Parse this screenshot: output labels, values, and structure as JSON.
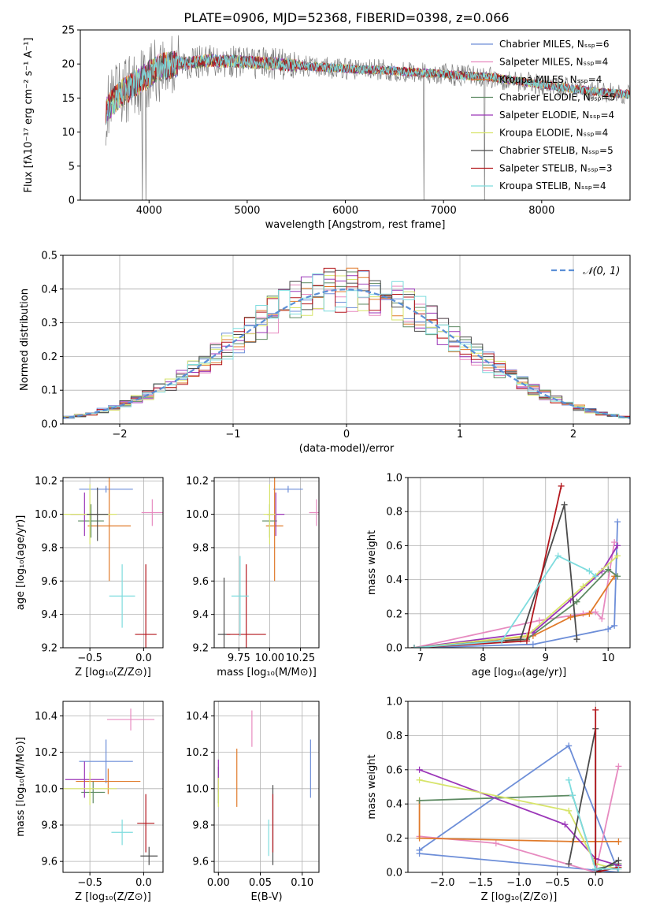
{
  "title": "PLATE=0906, MJD=52368, FIBERID=0398, z=0.066",
  "model_colors": [
    "#6d8ed8",
    "#e78bc0",
    "#e07a2a",
    "#5d8a62",
    "#9b36b8",
    "#d7e46a",
    "#4b4b4b",
    "#b3171d",
    "#7edcde"
  ],
  "chart_data": [
    {
      "id": "spectrum",
      "type": "line",
      "title": "PLATE=0906, MJD=52368, FIBERID=0398, z=0.066",
      "xlabel": "wavelength [Angstrom, rest frame]",
      "ylabel": "Flux [fλ10⁻¹⁷ erg cm⁻² s⁻¹ A⁻¹]",
      "xlim": [
        3300,
        8900
      ],
      "ylim": [
        0,
        25
      ],
      "xticks": [
        "4000",
        "5000",
        "6000",
        "7000",
        "8000"
      ],
      "yticks": [
        "0",
        "5",
        "10",
        "15",
        "20",
        "25"
      ],
      "legend_position": "right",
      "series": [
        {
          "name": "Chabrier MILES, N_SSP=6"
        },
        {
          "name": "Salpeter MILES, N_SSP=4"
        },
        {
          "name": "Kroupa MILES, N_SSP=4"
        },
        {
          "name": "Chabrier ELODIE, N_SSP=5"
        },
        {
          "name": "Salpeter ELODIE, N_SSP=4"
        },
        {
          "name": "Kroupa ELODIE, N_SSP=4"
        },
        {
          "name": "Chabrier STELIB, N_SSP=5"
        },
        {
          "name": "Salpeter STELIB, N_SSP=3"
        },
        {
          "name": "Kroupa STELIB, N_SSP=4"
        }
      ],
      "continuum": [
        [
          3550,
          13
        ],
        [
          3700,
          15.5
        ],
        [
          3800,
          16.5
        ],
        [
          3950,
          18
        ],
        [
          4100,
          19.5
        ],
        [
          4300,
          20
        ],
        [
          4600,
          20.5
        ],
        [
          5000,
          20.3
        ],
        [
          5500,
          19.8
        ],
        [
          6000,
          19.3
        ],
        [
          6500,
          19
        ],
        [
          7000,
          18.5
        ],
        [
          7500,
          18
        ],
        [
          8000,
          17
        ],
        [
          8500,
          16
        ],
        [
          8900,
          15.5
        ]
      ]
    },
    {
      "id": "residuals",
      "type": "histogram",
      "xlabel": "(data-model)/error",
      "ylabel": "Normed distribution",
      "xlim": [
        -2.5,
        2.5
      ],
      "ylim": [
        0,
        0.5
      ],
      "xticks": [
        "−2",
        "−1",
        "0",
        "1",
        "2"
      ],
      "yticks": [
        "0.0",
        "0.1",
        "0.2",
        "0.3",
        "0.4",
        "0.5"
      ],
      "bin_width": 0.1,
      "legend": "𝒩(0, 1)",
      "legend_position": "upper right",
      "grid": true
    },
    {
      "id": "age_vs_Z",
      "type": "errorbar",
      "xlabel": "Z [log₁₀(Z/Z⊙)]",
      "ylabel": "age  [log₁₀(age/yr)]",
      "xlim": [
        -0.75,
        0.18
      ],
      "ylim": [
        9.2,
        10.22
      ],
      "xticks": [
        "−0.5",
        "0.0"
      ],
      "yticks": [
        "9.2",
        "9.4",
        "9.6",
        "9.8",
        "10.0",
        "10.2"
      ],
      "grid": true,
      "points": [
        {
          "x": -0.35,
          "xerr": 0.25,
          "y": 10.15,
          "yerr": 0.02
        },
        {
          "x": 0.08,
          "xerr": 0.1,
          "y": 10.01,
          "yerr": 0.08
        },
        {
          "x": -0.32,
          "xerr": 0.2,
          "y": 9.93,
          "yerr": 0.33
        },
        {
          "x": -0.49,
          "xerr": 0.12,
          "y": 9.96,
          "yerr": 0.1
        },
        {
          "x": -0.55,
          "xerr": 0.13,
          "y": 10.0,
          "yerr": 0.13
        },
        {
          "x": -0.5,
          "xerr": 0.25,
          "y": 10.0,
          "yerr": 0.18
        },
        {
          "x": -0.43,
          "xerr": 0.1,
          "y": 10.0,
          "yerr": 0.16
        },
        {
          "x": 0.02,
          "xerr": 0.1,
          "y": 9.28,
          "yerr": 0.42
        },
        {
          "x": -0.2,
          "xerr": 0.12,
          "y": 9.51,
          "yerr": 0.19
        }
      ]
    },
    {
      "id": "age_vs_mass",
      "type": "errorbar",
      "xlabel": "mass [log₁₀(M/M⊙)]",
      "ylabel": "",
      "xlim": [
        9.55,
        10.4
      ],
      "ylim": [
        9.2,
        10.22
      ],
      "xticks": [
        "9.75",
        "10.00",
        "10.25"
      ],
      "yticks": [
        "9.2",
        "9.4",
        "9.6",
        "9.8",
        "10.0",
        "10.2"
      ],
      "grid": true,
      "points": [
        {
          "x": 10.15,
          "xerr": 0.12,
          "y": 10.15,
          "yerr": 0.02
        },
        {
          "x": 10.38,
          "xerr": 0.06,
          "y": 10.01,
          "yerr": 0.08
        },
        {
          "x": 10.04,
          "xerr": 0.07,
          "y": 9.93,
          "yerr": 0.33
        },
        {
          "x": 10.0,
          "xerr": 0.06,
          "y": 9.96,
          "yerr": 0.1
        },
        {
          "x": 10.05,
          "xerr": 0.07,
          "y": 10.0,
          "yerr": 0.13
        },
        {
          "x": 10.0,
          "xerr": 0.05,
          "y": 10.0,
          "yerr": 0.18
        },
        {
          "x": 9.63,
          "xerr": 0.05,
          "y": 9.28,
          "yerr": 0.34
        },
        {
          "x": 9.81,
          "xerr": 0.16,
          "y": 9.28,
          "yerr": 0.42
        },
        {
          "x": 9.76,
          "xerr": 0.07,
          "y": 9.51,
          "yerr": 0.24
        }
      ]
    },
    {
      "id": "weight_vs_age",
      "type": "line",
      "xlabel": "age  [log₁₀(age/yr)]",
      "ylabel": "mass weight",
      "xlim": [
        6.8,
        10.35
      ],
      "ylim": [
        0,
        1.0
      ],
      "xticks": [
        "7",
        "8",
        "9",
        "10"
      ],
      "yticks": [
        "0.0",
        "0.2",
        "0.4",
        "0.6",
        "0.8",
        "1.0"
      ],
      "grid": true,
      "series": [
        {
          "x": [
            6.9,
            8.8,
            10.0,
            10.1,
            10.15
          ],
          "y": [
            0.0,
            0.02,
            0.11,
            0.13,
            0.74
          ]
        },
        {
          "x": 6.9,
          "y": 0
        },
        {
          "x": [
            6.9,
            8.9,
            9.6,
            9.8,
            9.9,
            10.1
          ],
          "y": [
            0.0,
            0.16,
            0.2,
            0.21,
            0.17,
            0.62
          ]
        },
        {
          "x": [
            6.9,
            8.8,
            9.4,
            9.7,
            10.1
          ],
          "y": [
            0.0,
            0.07,
            0.18,
            0.2,
            0.42
          ]
        },
        {
          "x": [
            6.9,
            8.7,
            9.5,
            10.0,
            10.15
          ],
          "y": [
            0.0,
            0.05,
            0.27,
            0.46,
            0.42
          ]
        },
        {
          "x": [
            6.9,
            8.8,
            9.4,
            9.9,
            10.15
          ],
          "y": [
            0.0,
            0.09,
            0.28,
            0.45,
            0.6
          ]
        },
        {
          "x": [
            6.9,
            8.7,
            9.6,
            10.15
          ],
          "y": [
            0.0,
            0.07,
            0.36,
            0.54
          ]
        },
        {
          "x": [
            6.9,
            8.6,
            9.3,
            9.5
          ],
          "y": [
            0.0,
            0.05,
            0.84,
            0.05
          ]
        },
        {
          "x": [
            6.9,
            8.7,
            9.25
          ],
          "y": [
            0.0,
            0.04,
            0.95
          ]
        },
        {
          "x": [
            6.9,
            8.3,
            9.2,
            9.7,
            9.8
          ],
          "y": [
            0.0,
            0.04,
            0.54,
            0.45,
            0.42
          ]
        }
      ]
    },
    {
      "id": "mass_vs_Z",
      "type": "errorbar",
      "xlabel": "Z [log₁₀(Z/Z⊙)]",
      "ylabel": "mass [log₁₀(M/M⊙)]",
      "xlim": [
        -0.75,
        0.18
      ],
      "ylim": [
        9.54,
        10.48
      ],
      "xticks": [
        "−0.5",
        "0.0"
      ],
      "yticks": [
        "9.6",
        "9.8",
        "10.0",
        "10.2",
        "10.4"
      ],
      "grid": true,
      "points": [
        {
          "x": -0.35,
          "xerr": 0.25,
          "y": 10.15,
          "yerr": 0.12
        },
        {
          "x": -0.12,
          "xerr": 0.22,
          "y": 10.38,
          "yerr": 0.06
        },
        {
          "x": -0.33,
          "xerr": 0.3,
          "y": 10.04,
          "yerr": 0.07
        },
        {
          "x": -0.47,
          "xerr": 0.11,
          "y": 9.98,
          "yerr": 0.06
        },
        {
          "x": -0.55,
          "xerr": 0.18,
          "y": 10.05,
          "yerr": 0.1
        },
        {
          "x": -0.5,
          "xerr": 0.25,
          "y": 10.0,
          "yerr": 0.09
        },
        {
          "x": 0.05,
          "xerr": 0.08,
          "y": 9.63,
          "yerr": 0.05
        },
        {
          "x": 0.02,
          "xerr": 0.08,
          "y": 9.81,
          "yerr": 0.16
        },
        {
          "x": -0.2,
          "xerr": 0.1,
          "y": 9.76,
          "yerr": 0.07
        }
      ]
    },
    {
      "id": "mass_vs_ebv",
      "type": "errorbar",
      "xlabel": "E(B-V)",
      "ylabel": "",
      "xlim": [
        -0.005,
        0.12
      ],
      "ylim": [
        9.54,
        10.48
      ],
      "xticks": [
        "0.00",
        "0.05",
        "0.10"
      ],
      "yticks": [
        "9.6",
        "9.8",
        "10.0",
        "10.2",
        "10.4"
      ],
      "grid": true,
      "points": [
        {
          "x": 0.11,
          "xerr": 0,
          "y": 10.11,
          "yerr": 0.16
        },
        {
          "x": 0.04,
          "xerr": 0,
          "y": 10.33,
          "yerr": 0.1
        },
        {
          "x": 0.022,
          "xerr": 0,
          "y": 10.06,
          "yerr": 0.16
        },
        {
          "x": 0.0,
          "xerr": 0,
          "y": 10.02,
          "yerr": 0.1
        },
        {
          "x": 0.0,
          "xerr": 0,
          "y": 10.07,
          "yerr": 0.09
        },
        {
          "x": 0.0,
          "xerr": 0,
          "y": 9.98,
          "yerr": 0.08
        },
        {
          "x": 0.065,
          "xerr": 0,
          "y": 9.8,
          "yerr": 0.22
        },
        {
          "x": 0.065,
          "xerr": 0,
          "y": 9.81,
          "yerr": 0.16
        },
        {
          "x": 0.06,
          "xerr": 0,
          "y": 9.73,
          "yerr": 0.1
        }
      ]
    },
    {
      "id": "weight_vs_Z",
      "type": "line",
      "xlabel": "Z [log₁₀(Z/Z⊙)]",
      "ylabel": "mass weight",
      "xlim": [
        -2.45,
        0.45
      ],
      "ylim": [
        0,
        1.0
      ],
      "xticks": [
        "−2.0",
        "−1.5",
        "−1.0",
        "−0.5",
        "0.0"
      ],
      "yticks": [
        "0.0",
        "0.2",
        "0.4",
        "0.6",
        "0.8",
        "1.0"
      ],
      "grid": true,
      "series": [
        {
          "x": [
            -2.3,
            -0.35,
            0.3,
            -2.3
          ],
          "y": [
            0.13,
            0.74,
            0.0,
            0.11
          ]
        },
        {
          "x": [
            -2.3,
            -1.3,
            0.0,
            0.3
          ],
          "y": [
            0.21,
            0.17,
            0.0,
            0.62
          ]
        },
        {
          "x": [
            -2.3,
            -2.3,
            -0.3,
            0.3
          ],
          "y": [
            0.42,
            0.2,
            0.18,
            0.18
          ]
        },
        {
          "x": [
            -2.3,
            -0.3,
            0.0,
            0.3
          ],
          "y": [
            0.42,
            0.45,
            0.02,
            0.05
          ]
        },
        {
          "x": [
            -2.3,
            -0.4,
            0.0,
            0.3
          ],
          "y": [
            0.6,
            0.28,
            0.08,
            0.04
          ]
        },
        {
          "x": [
            -2.3,
            -0.35,
            0.0,
            0.3
          ],
          "y": [
            0.54,
            0.36,
            0.05,
            0.02
          ]
        },
        {
          "x": [
            -0.35,
            0.0,
            0.0,
            0.3
          ],
          "y": [
            0.05,
            0.84,
            0.0,
            0.07
          ]
        },
        {
          "x": [
            0.0,
            0.0,
            0.3
          ],
          "y": [
            0.95,
            0.0,
            0.03
          ]
        },
        {
          "x": [
            -0.35,
            -0.3,
            0.0,
            0.3
          ],
          "y": [
            0.54,
            0.45,
            0.02,
            0.02
          ]
        }
      ]
    }
  ]
}
